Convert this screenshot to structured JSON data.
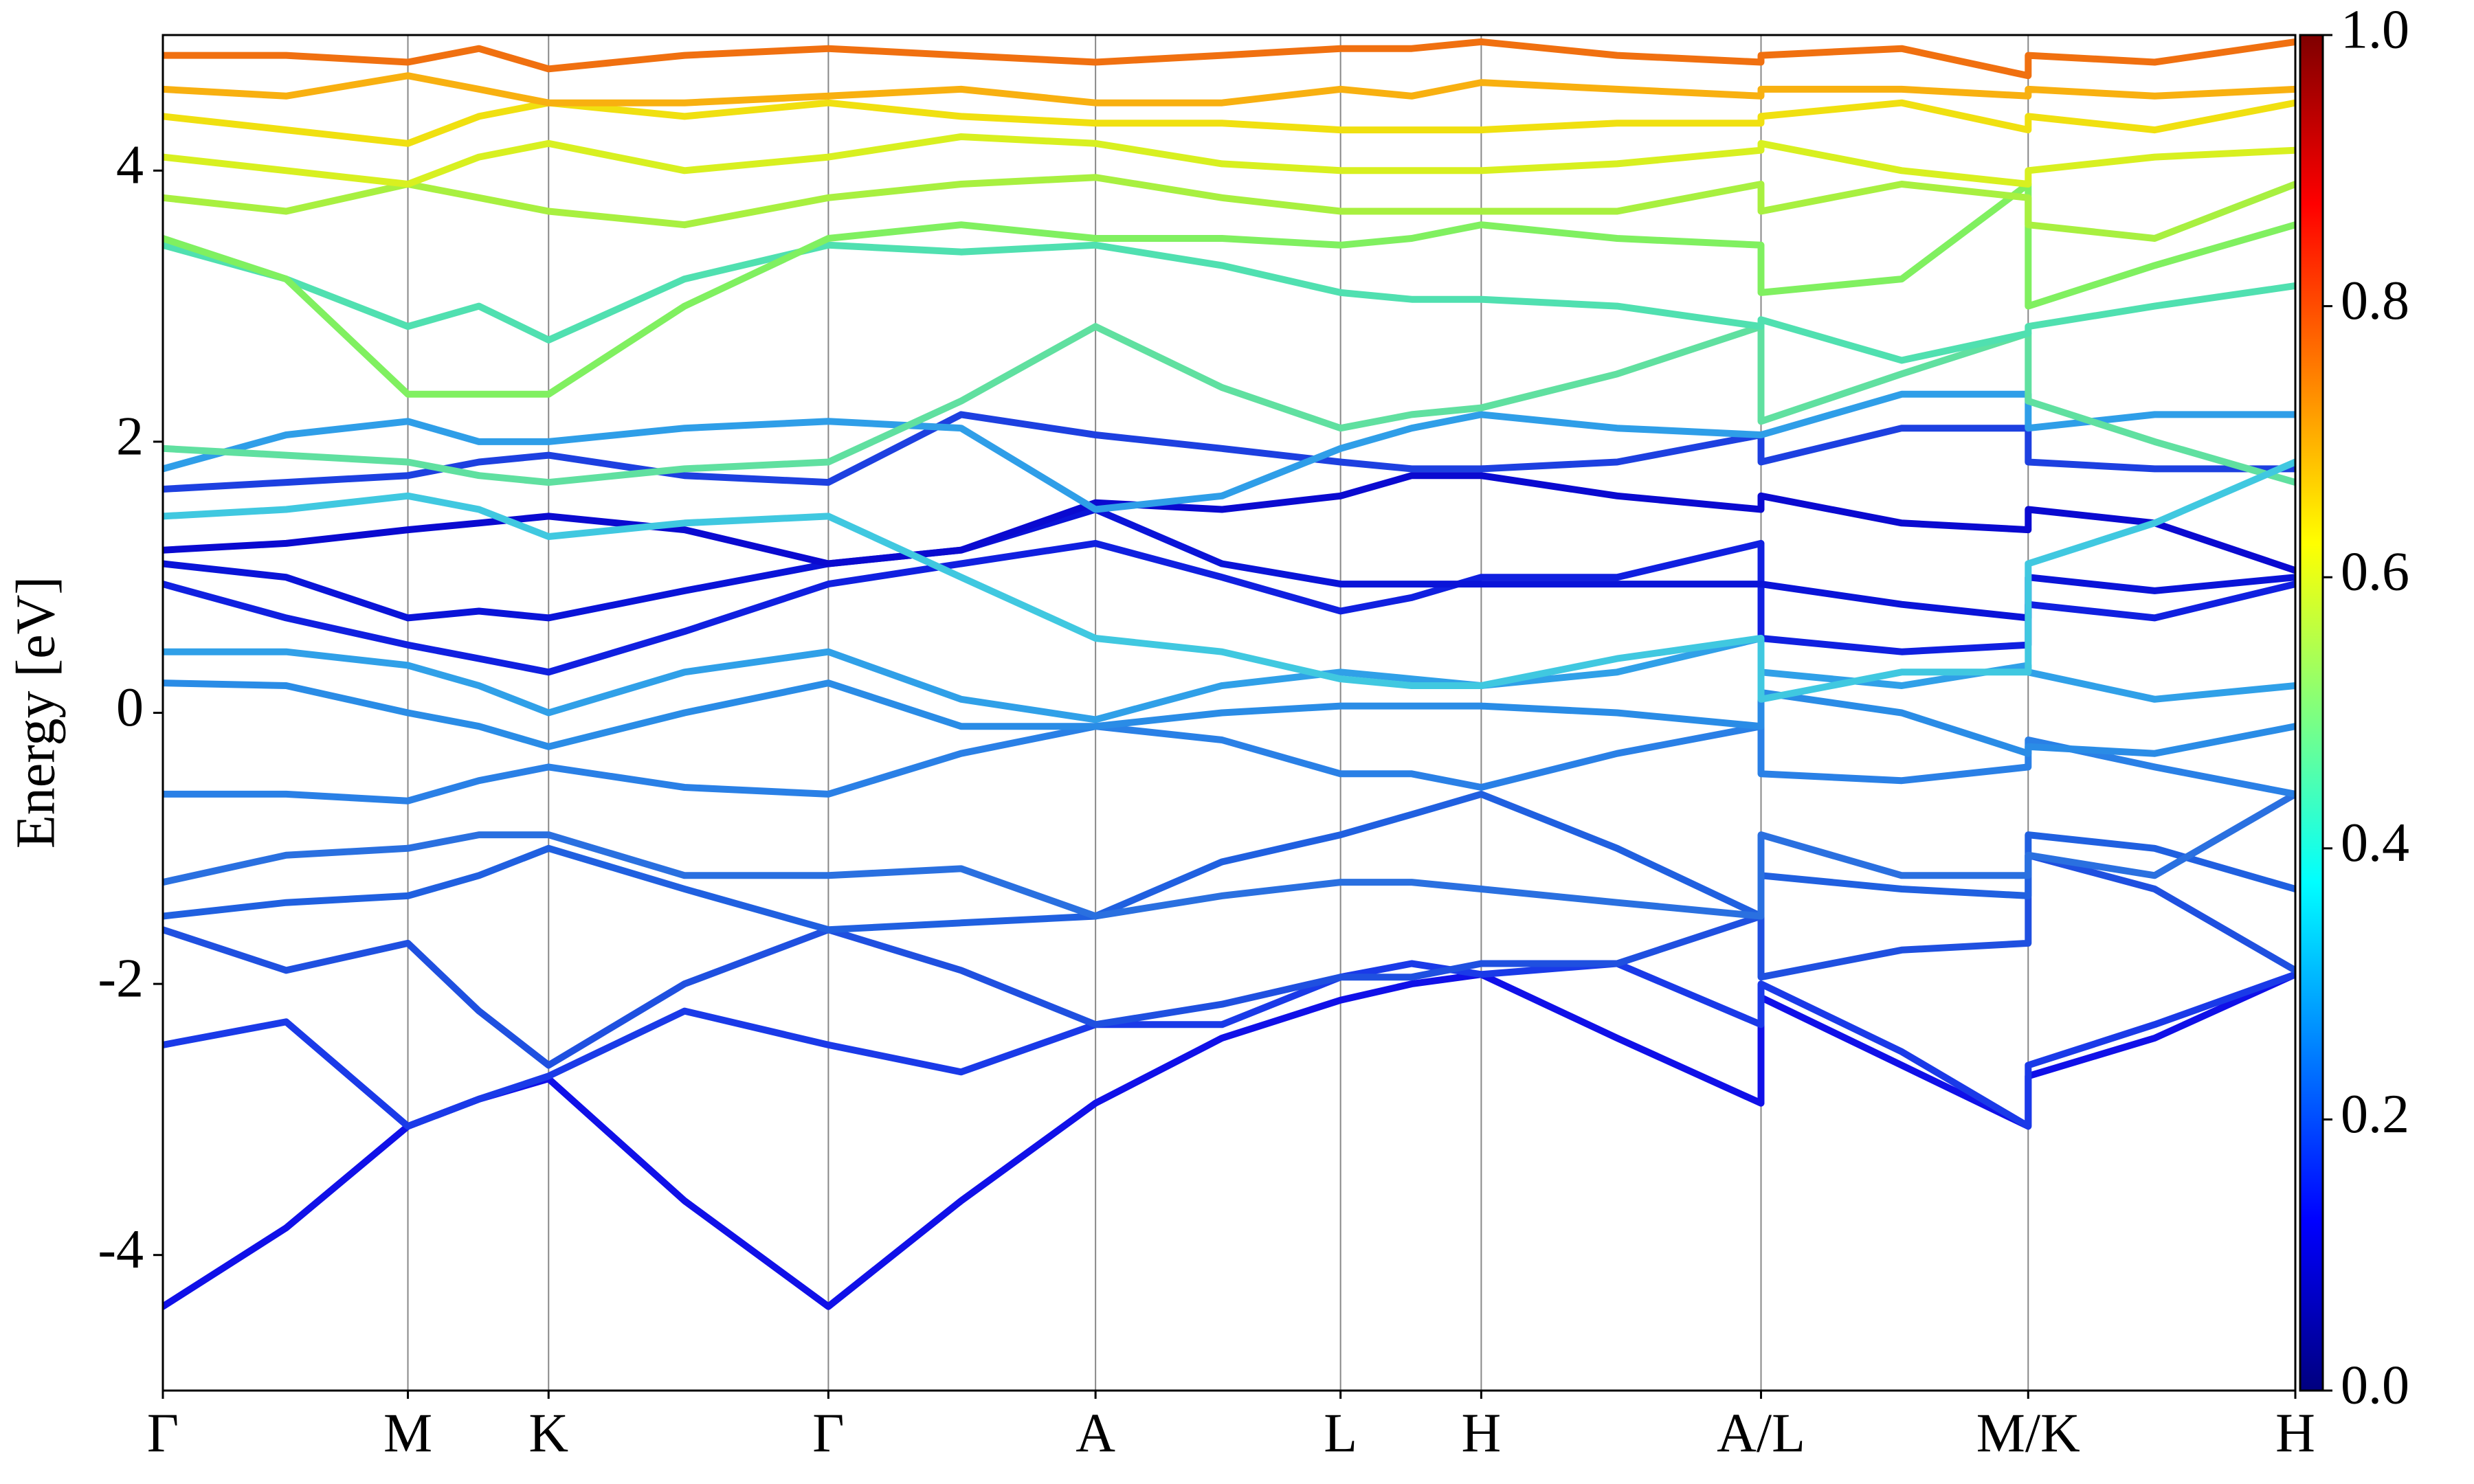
{
  "chart_data": {
    "type": "line",
    "ylabel": "Energy [eV]",
    "x": [
      0,
      0.78,
      1.55,
      2.0,
      2.44,
      3.3,
      4.21,
      5.05,
      5.9,
      6.7,
      7.45,
      7.9,
      8.34,
      9.2,
      10.11,
      10.11,
      11.0,
      11.8,
      11.8,
      12.6,
      13.49
    ],
    "xlim": [
      0,
      13.49
    ],
    "xticks": [
      {
        "value": 0,
        "label": "Γ"
      },
      {
        "value": 1.55,
        "label": "M"
      },
      {
        "value": 2.44,
        "label": "K"
      },
      {
        "value": 4.21,
        "label": "Γ"
      },
      {
        "value": 5.9,
        "label": "A"
      },
      {
        "value": 7.45,
        "label": "L"
      },
      {
        "value": 8.34,
        "label": "H"
      },
      {
        "value": 10.11,
        "label": "A/L"
      },
      {
        "value": 11.8,
        "label": "M/K"
      },
      {
        "value": 13.49,
        "label": "H"
      }
    ],
    "ylim": [
      -5,
      5
    ],
    "yticks": [
      -4,
      -2,
      0,
      2,
      4
    ],
    "colorbar": {
      "lim": [
        0,
        1
      ],
      "ticks": [
        {
          "value": 0,
          "label": "0.0"
        },
        0.2,
        0.4,
        0.6,
        0.8,
        {
          "value": 1,
          "label": "1.0"
        }
      ],
      "colormap": [
        "#00007f",
        "#0000ff",
        "#007fff",
        "#00ffff",
        "#7fff7f",
        "#ffff00",
        "#ff7f00",
        "#ff0000",
        "#7f0000"
      ]
    },
    "series": [
      {
        "color": "#1010e8",
        "values": [
          -4.38,
          -3.8,
          -3.05,
          -2.85,
          -2.7,
          -3.6,
          -4.38,
          -3.6,
          -2.88,
          -2.4,
          -2.12,
          -2.0,
          -1.93,
          -2.4,
          -2.88,
          -2.1,
          -2.6,
          -3.05,
          -2.68,
          -2.4,
          -1.93
        ]
      },
      {
        "color": "#1a3ae8",
        "values": [
          -2.45,
          -2.28,
          -3.05,
          -2.85,
          -2.68,
          -2.2,
          -2.45,
          -2.65,
          -2.3,
          -2.3,
          -1.95,
          -1.85,
          -1.93,
          -1.85,
          -2.3,
          -2.0,
          -2.5,
          -3.05,
          -2.6,
          -2.3,
          -1.93
        ]
      },
      {
        "color": "#1f50e0",
        "values": [
          -1.6,
          -1.9,
          -1.7,
          -2.2,
          -2.6,
          -2.0,
          -1.6,
          -1.9,
          -2.3,
          -2.15,
          -1.95,
          -1.95,
          -1.85,
          -1.85,
          -1.5,
          -1.95,
          -1.75,
          -1.7,
          -1.05,
          -1.3,
          -1.9
        ]
      },
      {
        "color": "#2060e0",
        "values": [
          -1.5,
          -1.4,
          -1.35,
          -1.2,
          -1.0,
          -1.3,
          -1.6,
          -1.55,
          -1.5,
          -1.1,
          -0.9,
          -0.75,
          -0.6,
          -1.0,
          -1.5,
          -1.2,
          -1.3,
          -1.35,
          -0.9,
          -1.0,
          -1.3
        ]
      },
      {
        "color": "#2a70e0",
        "values": [
          -1.25,
          -1.05,
          -1.0,
          -0.9,
          -0.9,
          -1.2,
          -1.2,
          -1.15,
          -1.5,
          -1.35,
          -1.25,
          -1.25,
          -1.3,
          -1.4,
          -1.5,
          -0.9,
          -1.2,
          -1.2,
          -1.05,
          -1.2,
          -0.6
        ]
      },
      {
        "color": "#2a80e6",
        "values": [
          -0.6,
          -0.6,
          -0.65,
          -0.5,
          -0.4,
          -0.55,
          -0.6,
          -0.3,
          -0.1,
          -0.2,
          -0.45,
          -0.45,
          -0.55,
          -0.3,
          -0.1,
          -0.45,
          -0.5,
          -0.4,
          -0.2,
          -0.4,
          -0.6
        ]
      },
      {
        "color": "#2a8ce6",
        "values": [
          0.22,
          0.2,
          0.0,
          -0.1,
          -0.25,
          0.0,
          0.22,
          -0.1,
          -0.1,
          0.0,
          0.05,
          0.05,
          0.05,
          0.0,
          -0.1,
          0.15,
          0.0,
          -0.3,
          -0.25,
          -0.3,
          -0.1
        ]
      },
      {
        "color": "#30a0e8",
        "values": [
          0.45,
          0.45,
          0.35,
          0.2,
          0.0,
          0.3,
          0.45,
          0.1,
          -0.05,
          0.2,
          0.3,
          0.25,
          0.2,
          0.3,
          0.55,
          0.3,
          0.2,
          0.35,
          0.3,
          0.1,
          0.2
        ]
      },
      {
        "color": "#1020e0",
        "values": [
          0.95,
          0.7,
          0.5,
          0.4,
          0.3,
          0.6,
          0.95,
          1.1,
          1.25,
          1.0,
          0.75,
          0.85,
          1.0,
          1.0,
          1.25,
          0.55,
          0.45,
          0.5,
          0.8,
          0.7,
          0.95
        ]
      },
      {
        "color": "#0a14d8",
        "values": [
          1.1,
          1.0,
          0.7,
          0.75,
          0.7,
          0.9,
          1.1,
          1.2,
          1.5,
          1.1,
          0.95,
          0.95,
          0.95,
          0.95,
          0.95,
          0.95,
          0.8,
          0.7,
          1.0,
          0.9,
          1.0
        ]
      },
      {
        "color": "#0a0ad0",
        "values": [
          1.2,
          1.25,
          1.35,
          1.4,
          1.45,
          1.35,
          1.1,
          1.2,
          1.55,
          1.5,
          1.6,
          1.75,
          1.75,
          1.6,
          1.5,
          1.6,
          1.4,
          1.35,
          1.5,
          1.4,
          1.05
        ]
      },
      {
        "color": "#1d40e0",
        "values": [
          1.65,
          1.7,
          1.75,
          1.85,
          1.9,
          1.75,
          1.7,
          2.2,
          2.05,
          1.95,
          1.85,
          1.8,
          1.8,
          1.85,
          2.05,
          1.85,
          2.1,
          2.1,
          1.85,
          1.8,
          1.8
        ]
      },
      {
        "color": "#2f9ee8",
        "values": [
          1.8,
          2.05,
          2.15,
          2.0,
          2.0,
          2.1,
          2.15,
          2.1,
          1.5,
          1.6,
          1.95,
          2.1,
          2.2,
          2.1,
          2.05,
          2.05,
          2.35,
          2.35,
          2.1,
          2.2,
          2.2
        ]
      },
      {
        "color": "#60e0a0",
        "values": [
          1.95,
          1.9,
          1.85,
          1.75,
          1.7,
          1.8,
          1.85,
          2.3,
          2.85,
          2.4,
          2.1,
          2.2,
          2.25,
          2.5,
          2.85,
          2.15,
          2.5,
          2.8,
          2.3,
          2.0,
          1.7
        ]
      },
      {
        "color": "#40c8e0",
        "values": [
          1.45,
          1.5,
          1.6,
          1.5,
          1.3,
          1.4,
          1.45,
          1.0,
          0.55,
          0.45,
          0.25,
          0.2,
          0.2,
          0.4,
          0.55,
          0.1,
          0.3,
          0.3,
          1.1,
          1.4,
          1.85
        ]
      },
      {
        "color": "#50e0b0",
        "values": [
          3.45,
          3.2,
          2.85,
          3.0,
          2.75,
          3.2,
          3.45,
          3.4,
          3.45,
          3.3,
          3.1,
          3.05,
          3.05,
          3.0,
          2.85,
          2.9,
          2.6,
          2.8,
          2.85,
          3.0,
          3.15
        ]
      },
      {
        "color": "#80f060",
        "values": [
          3.5,
          3.2,
          2.35,
          2.35,
          2.35,
          3.0,
          3.5,
          3.6,
          3.5,
          3.5,
          3.45,
          3.5,
          3.6,
          3.5,
          3.45,
          3.1,
          3.2,
          3.9,
          3.0,
          3.3,
          3.6
        ]
      },
      {
        "color": "#a8f040",
        "values": [
          3.8,
          3.7,
          3.9,
          3.8,
          3.7,
          3.6,
          3.8,
          3.9,
          3.95,
          3.8,
          3.7,
          3.7,
          3.7,
          3.7,
          3.9,
          3.7,
          3.9,
          3.8,
          3.6,
          3.5,
          3.9
        ]
      },
      {
        "color": "#d8f020",
        "values": [
          4.1,
          4.0,
          3.9,
          4.1,
          4.2,
          4.0,
          4.1,
          4.25,
          4.2,
          4.05,
          4.0,
          4.0,
          4.0,
          4.05,
          4.15,
          4.2,
          4.0,
          3.9,
          4.0,
          4.1,
          4.15
        ]
      },
      {
        "color": "#f0e010",
        "values": [
          4.4,
          4.3,
          4.2,
          4.4,
          4.5,
          4.4,
          4.5,
          4.4,
          4.35,
          4.35,
          4.3,
          4.3,
          4.3,
          4.35,
          4.35,
          4.4,
          4.5,
          4.3,
          4.4,
          4.3,
          4.5
        ]
      },
      {
        "color": "#f8b010",
        "values": [
          4.6,
          4.55,
          4.7,
          4.6,
          4.5,
          4.5,
          4.55,
          4.6,
          4.5,
          4.5,
          4.6,
          4.55,
          4.65,
          4.6,
          4.55,
          4.6,
          4.6,
          4.55,
          4.6,
          4.55,
          4.6
        ]
      },
      {
        "color": "#f07010",
        "values": [
          4.85,
          4.85,
          4.8,
          4.9,
          4.75,
          4.85,
          4.9,
          4.85,
          4.8,
          4.85,
          4.9,
          4.9,
          4.95,
          4.85,
          4.8,
          4.85,
          4.9,
          4.7,
          4.85,
          4.8,
          4.95
        ]
      }
    ]
  }
}
